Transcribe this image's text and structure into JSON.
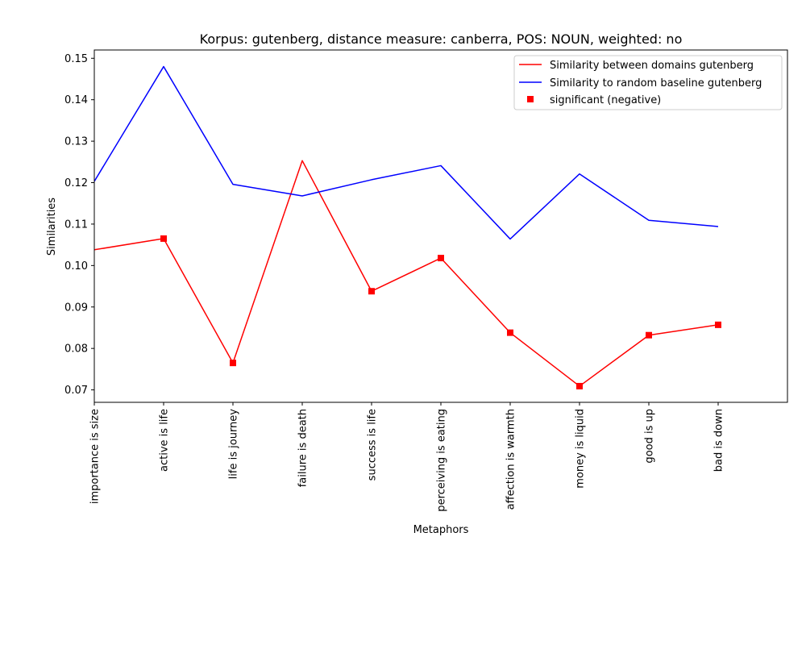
{
  "chart_data": {
    "type": "line",
    "title": "Korpus: gutenberg, distance measure: canberra, POS: NOUN, weighted: no",
    "xlabel": "Metaphors",
    "ylabel": "Similarities",
    "categories": [
      "importance is size",
      "active is life",
      "life is journey",
      "failure is death",
      "success is life",
      "perceiving is eating",
      "affection is warmth",
      "money is liquid",
      "good is up",
      "bad is down"
    ],
    "ylim": [
      0.067,
      0.152
    ],
    "yticks": [
      "0.07",
      "0.08",
      "0.09",
      "0.10",
      "0.11",
      "0.12",
      "0.13",
      "0.14",
      "0.15"
    ],
    "grid": false,
    "legend_position": "top-right",
    "series": [
      {
        "name": "Similarity between domains gutenberg",
        "color": "#ff0000",
        "values": [
          0.1038,
          0.1065,
          0.0765,
          0.1253,
          0.0938,
          0.1018,
          0.0838,
          0.0709,
          0.0832,
          0.0857
        ]
      },
      {
        "name": "Similarity to random baseline gutenberg",
        "color": "#0000ff",
        "values": [
          0.1203,
          0.148,
          0.1196,
          0.1168,
          0.1207,
          0.1241,
          0.1064,
          0.1221,
          0.1109,
          0.1094
        ]
      }
    ],
    "markers": {
      "name": "significant (negative)",
      "color": "#ff0000",
      "series_index": 0,
      "indices": [
        1,
        2,
        4,
        5,
        6,
        7,
        8,
        9
      ]
    }
  }
}
